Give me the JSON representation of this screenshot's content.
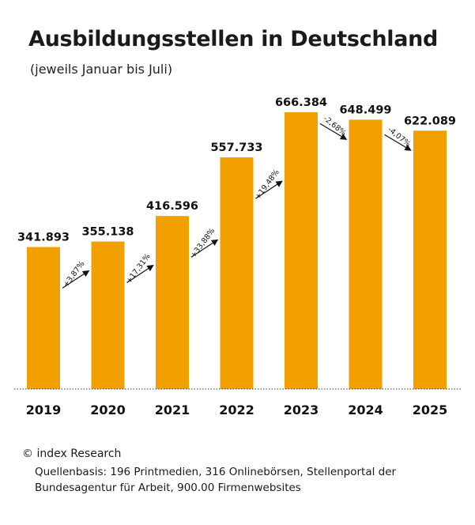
{
  "chart_data": {
    "type": "bar",
    "title": "Ausbildungsstellen in Deutschland",
    "subtitle": "(jeweils Januar bis Juli)",
    "categories": [
      "2019",
      "2020",
      "2021",
      "2022",
      "2023",
      "2024",
      "2025"
    ],
    "values": [
      341893,
      355138,
      416596,
      557733,
      666384,
      648499,
      622089
    ],
    "value_labels": [
      "341.893",
      "355.138",
      "416.596",
      "557.733",
      "666.384",
      "648.499",
      "622.089"
    ],
    "changes": [
      "+3,87%",
      "+17,31%",
      "+33,88%",
      "+19,48%",
      "-2,68%",
      "-4,07%"
    ],
    "ylim": [
      0,
      666384
    ],
    "bar_color": "#f29f00",
    "baseline": "dotted",
    "grid": false,
    "xlabel": "",
    "ylabel": ""
  },
  "footer": {
    "copyright": "© index Research",
    "source_note": "Quellenbasis: 196 Printmedien, 316 Onlinebörsen, Stellenportal der Bundesagentur für Arbeit, 900.00 Firmenwebsites"
  }
}
